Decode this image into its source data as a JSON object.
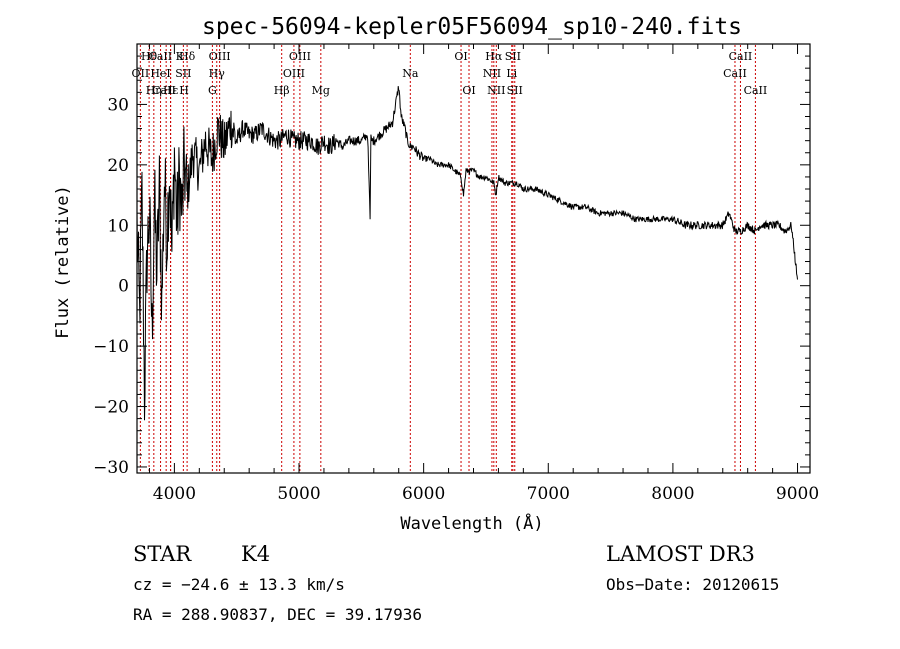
{
  "chart_data": {
    "type": "line",
    "title": "spec-56094-kepler05F56094_sp10-240.fits",
    "xlabel": "Wavelength (Å)",
    "ylabel": "Flux (relative)",
    "xlim": [
      3700,
      9100
    ],
    "ylim": [
      -31,
      40
    ],
    "xticks": [
      4000,
      5000,
      6000,
      7000,
      8000,
      9000
    ],
    "xtick_labels": [
      "4000",
      "5000",
      "6000",
      "7000",
      "8000",
      "9000"
    ],
    "yticks": [
      -30,
      -20,
      -10,
      0,
      10,
      20,
      30
    ],
    "ytick_labels": [
      "−30",
      "−20",
      "−10",
      "0",
      "10",
      "20",
      "30"
    ],
    "grid": false,
    "line_color": "#000000",
    "marker_color": "#cc0000",
    "series": [
      {
        "name": "flux",
        "x": [
          3700,
          3720,
          3740,
          3760,
          3780,
          3800,
          3820,
          3840,
          3860,
          3880,
          3900,
          3920,
          3940,
          3960,
          3980,
          4000,
          4020,
          4040,
          4060,
          4080,
          4100,
          4150,
          4200,
          4250,
          4300,
          4350,
          4400,
          4450,
          4500,
          4550,
          4600,
          4650,
          4700,
          4750,
          4800,
          4850,
          4900,
          4950,
          5000,
          5050,
          5100,
          5150,
          5200,
          5250,
          5300,
          5350,
          5400,
          5450,
          5500,
          5550,
          5570,
          5577,
          5585,
          5600,
          5650,
          5700,
          5750,
          5800,
          5820,
          5850,
          5870,
          5893,
          5920,
          5950,
          6000,
          6050,
          6100,
          6150,
          6200,
          6250,
          6300,
          6320,
          6340,
          6400,
          6450,
          6500,
          6563,
          6580,
          6600,
          6650,
          6700,
          6750,
          6800,
          6900,
          7000,
          7100,
          7200,
          7300,
          7400,
          7500,
          7600,
          7700,
          7800,
          7900,
          8000,
          8100,
          8200,
          8300,
          8400,
          8450,
          8498,
          8542,
          8600,
          8662,
          8700,
          8750,
          8800,
          8850,
          8900,
          8950,
          9000
        ],
        "values": [
          10,
          -5,
          15,
          -18,
          5,
          12,
          -8,
          14,
          2,
          16,
          -3,
          18,
          8,
          20,
          5,
          22,
          10,
          18,
          12,
          20,
          15,
          22,
          19,
          24,
          21,
          26,
          23,
          27,
          24,
          26,
          25,
          25,
          26,
          25,
          24,
          24,
          25,
          24,
          24,
          24,
          24,
          23,
          24,
          23,
          24,
          23,
          24,
          24,
          24,
          25,
          11,
          25,
          24,
          24,
          25,
          26,
          27,
          33,
          28,
          26,
          24,
          23,
          23,
          22,
          21,
          21,
          20,
          20,
          20,
          19,
          18,
          15,
          19,
          19,
          18,
          18,
          17,
          15,
          18,
          17,
          17,
          17,
          16,
          16,
          15,
          14,
          13,
          13,
          12,
          12,
          12,
          11,
          11,
          11,
          11,
          10,
          10,
          10,
          10,
          12,
          9,
          9,
          10,
          9,
          10,
          10,
          10,
          10,
          9,
          10,
          1
        ]
      }
    ],
    "line_markers": [
      {
        "label": "OII",
        "x": 3727,
        "row": 2
      },
      {
        "label": "Hθ",
        "x": 3797,
        "row": 1
      },
      {
        "label": "Hη",
        "x": 3835,
        "row": 3
      },
      {
        "label": "CaII K",
        "x": 3934,
        "row": 1
      },
      {
        "label": "CaII H",
        "x": 3969,
        "row": 3
      },
      {
        "label": "HeI",
        "x": 3889,
        "row": 2
      },
      {
        "label": "Hε",
        "x": 3970,
        "row": 3
      },
      {
        "label": "SII",
        "x": 4072,
        "row": 2
      },
      {
        "label": "Hδ",
        "x": 4102,
        "row": 1
      },
      {
        "label": "G",
        "x": 4305,
        "row": 3
      },
      {
        "label": "Hγ",
        "x": 4340,
        "row": 2
      },
      {
        "label": "OIII",
        "x": 4363,
        "row": 1
      },
      {
        "label": "Hβ",
        "x": 4861,
        "row": 3
      },
      {
        "label": "OIII",
        "x": 4959,
        "row": 2
      },
      {
        "label": "OIII",
        "x": 5007,
        "row": 1
      },
      {
        "label": "Mg",
        "x": 5175,
        "row": 3
      },
      {
        "label": "Na",
        "x": 5893,
        "row": 2
      },
      {
        "label": "OI",
        "x": 6300,
        "row": 1
      },
      {
        "label": "OI",
        "x": 6364,
        "row": 3
      },
      {
        "label": "NII",
        "x": 6548,
        "row": 2
      },
      {
        "label": "Hα",
        "x": 6563,
        "row": 1
      },
      {
        "label": "NII",
        "x": 6583,
        "row": 3
      },
      {
        "label": "Li",
        "x": 6707,
        "row": 2
      },
      {
        "label": "SII",
        "x": 6716,
        "row": 1
      },
      {
        "label": "SII",
        "x": 6731,
        "row": 3
      },
      {
        "label": "CaII",
        "x": 8498,
        "row": 2
      },
      {
        "label": "CaII",
        "x": 8542,
        "row": 1
      },
      {
        "label": "CaII",
        "x": 8662,
        "row": 3
      }
    ]
  },
  "info": {
    "class_label": "STAR",
    "subclass": "K4",
    "survey": "LAMOST DR3",
    "velocity": "cz = −24.6 ± 13.3 km/s",
    "obs_date": "Obs−Date: 20120615",
    "coords": "RA = 288.90837, DEC =  39.17936"
  }
}
